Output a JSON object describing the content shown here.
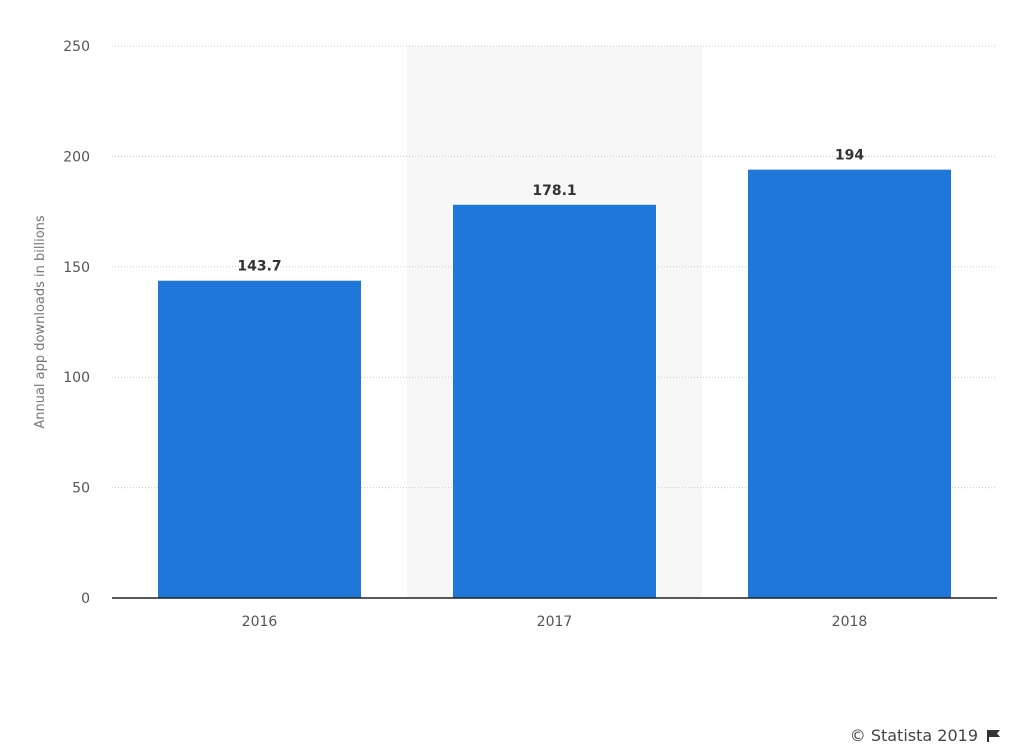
{
  "chart_data": {
    "type": "bar",
    "categories": [
      "2016",
      "2017",
      "2018"
    ],
    "values": [
      143.7,
      178.1,
      194
    ],
    "data_labels": [
      "143.7",
      "178.1",
      "194"
    ],
    "ylabel": "Annual app downloads in billions",
    "xlabel": "",
    "ylim": [
      0,
      250
    ],
    "yticks": [
      0,
      50,
      100,
      150,
      200,
      250
    ],
    "grid": true,
    "highlighted_category": "2017",
    "bar_color": "#1f77d9",
    "highlight_color": "#f7f7f7",
    "grid_color": "#c8c8c8"
  },
  "credit": {
    "text": "© Statista 2019",
    "icon": "flag-icon"
  }
}
